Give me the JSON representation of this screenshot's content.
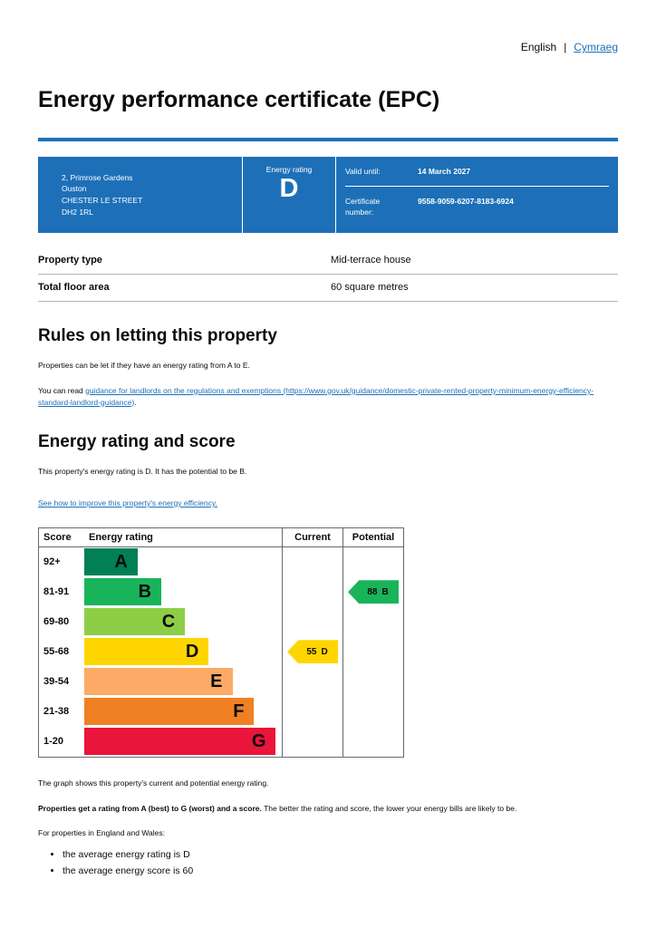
{
  "theme": {
    "brand_blue": "#1d70b8",
    "link_blue": "#1d70b8",
    "text_color": "#0b0c0c",
    "border_gray": "#b1b4b6"
  },
  "page": {
    "lang_english": "English",
    "lang_separator": "|",
    "lang_cymraeg": "Cymraeg",
    "title": "Energy performance certificate (EPC)"
  },
  "summary": {
    "address_lines": [
      "2, Primrose Gardens",
      "Ouston",
      "CHESTER LE STREET",
      "DH2 1RL"
    ],
    "energy_rating_label": "Energy rating",
    "energy_rating": "D",
    "valid_until_label": "Valid until:",
    "valid_until": "14 March 2027",
    "certificate_number_label": "Certificate number:",
    "certificate_number": "9558-9059-6207-8183-6924"
  },
  "property_details": {
    "rows": [
      {
        "label": "Property type",
        "value": "Mid-terrace house"
      },
      {
        "label": "Total floor area",
        "value": "60 square metres"
      }
    ]
  },
  "rules_section": {
    "heading": "Rules on letting this property",
    "body": "Properties can be let if they have an energy rating from A to E.",
    "link_prefix": "You can read ",
    "link_text": "guidance for landlords on the regulations and exemptions (https://www.gov.uk/guidance/domestic-private-rented-property-minimum-energy-efficiency-standard-landlord-guidance)",
    "link_suffix": "."
  },
  "rating_section": {
    "heading": "Energy rating and score",
    "body": "This property's energy rating is D. It has the potential to be B.",
    "improve_link": "See how to improve this property's energy efficiency."
  },
  "chart_data": {
    "type": "bar",
    "subtype": "epc-energy-rating-bands",
    "title": "Energy rating and score",
    "headers": {
      "score": "Score",
      "energy_rating": "Energy rating",
      "current": "Current",
      "potential": "Potential"
    },
    "bands": [
      {
        "score": "92+",
        "letter": "A",
        "color": "#008054",
        "width": "27%"
      },
      {
        "score": "81-91",
        "letter": "B",
        "color": "#19b459",
        "width": "39%"
      },
      {
        "score": "69-80",
        "letter": "C",
        "color": "#8dce46",
        "width": "51%"
      },
      {
        "score": "55-68",
        "letter": "D",
        "color": "#ffd500",
        "width": "63%"
      },
      {
        "score": "39-54",
        "letter": "E",
        "color": "#fcaa65",
        "width": "75%"
      },
      {
        "score": "21-38",
        "letter": "F",
        "color": "#ef8023",
        "width": "86%"
      },
      {
        "score": "1-20",
        "letter": "G",
        "color": "#e9153b",
        "width": "97%"
      }
    ],
    "current": {
      "score": "55",
      "letter": "D",
      "band": "D",
      "color": "#ffd500"
    },
    "potential": {
      "score": "88",
      "letter": "B",
      "band": "B",
      "color": "#19b459"
    }
  },
  "footer": {
    "graph_caption": "The graph shows this property's current and potential energy rating.",
    "ratings_bold": "Properties get a rating from A (best) to G (worst) and a score.",
    "ratings_rest": " The better the rating and score, the lower your energy bills are likely to be.",
    "england_wales": "For properties in England and Wales:",
    "bullets": [
      "the average energy rating is D",
      "the average energy score is 60"
    ]
  }
}
